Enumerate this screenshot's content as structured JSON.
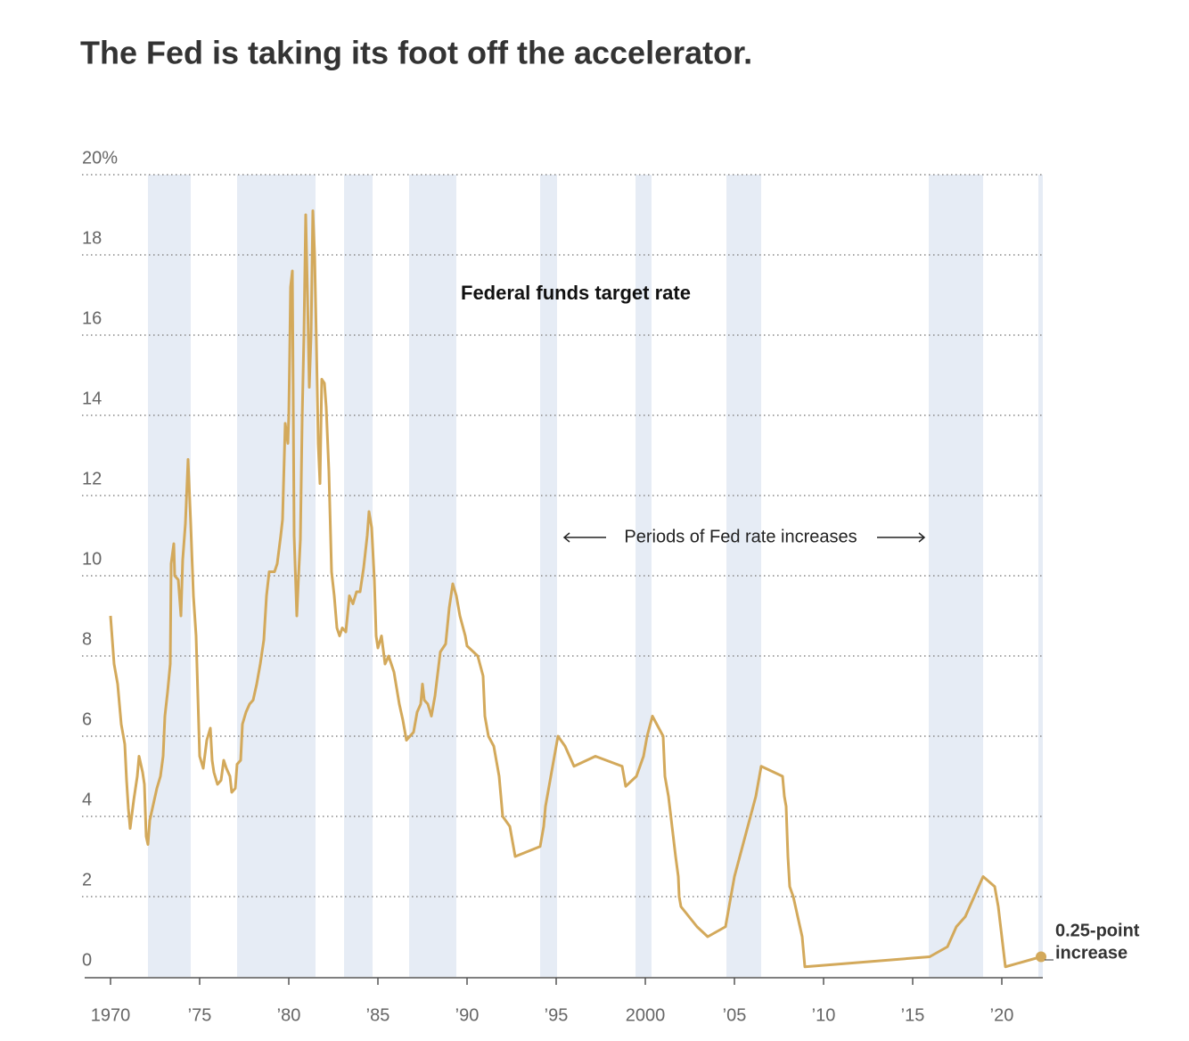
{
  "chart_data": {
    "type": "line",
    "title": "The Fed is taking its foot off the accelerator.",
    "xlim": [
      1968.55,
      2022.3
    ],
    "ylim": [
      0,
      20
    ],
    "xticks": [
      1970,
      {
        "value": 1975,
        "label": "’75"
      },
      {
        "value": 1980,
        "label": "’80"
      },
      {
        "value": 1985,
        "label": "’85"
      },
      {
        "value": 1990,
        "label": "’90"
      },
      {
        "value": 1995,
        "label": "’95"
      },
      2000,
      {
        "value": 2005,
        "label": "’05"
      },
      {
        "value": 2010,
        "label": "’10"
      },
      {
        "value": 2015,
        "label": "’15"
      },
      {
        "value": 2020,
        "label": "’20"
      }
    ],
    "yticks": [
      0,
      2,
      4,
      6,
      8,
      10,
      12,
      14,
      16,
      18,
      {
        "value": 20,
        "label": "20%"
      }
    ],
    "grid": true,
    "shade_color": "#e6ecf5",
    "shaded_periods": [
      [
        1972.1,
        1974.5
      ],
      [
        1977.1,
        1981.5
      ],
      [
        1983.1,
        1984.7
      ],
      [
        1986.75,
        1989.4
      ],
      [
        1994.1,
        1995.05
      ],
      [
        1999.45,
        2000.35
      ],
      [
        2004.55,
        2006.5
      ],
      [
        2015.9,
        2018.95
      ],
      [
        2022.05,
        2022.3
      ]
    ],
    "shade_annotation": "Periods of Fed rate increases",
    "end_annotation": [
      "0.25-point",
      "increase"
    ],
    "x": [
      1970.0,
      1970.2,
      1970.4,
      1970.6,
      1970.8,
      1970.9,
      1971.0,
      1971.1,
      1971.3,
      1971.5,
      1971.6,
      1971.8,
      1971.9,
      1972.0,
      1972.1,
      1972.2,
      1972.4,
      1972.6,
      1972.8,
      1972.95,
      1973.05,
      1973.2,
      1973.35,
      1973.4,
      1973.55,
      1973.6,
      1973.8,
      1973.95,
      1974.05,
      1974.2,
      1974.35,
      1974.5,
      1974.65,
      1974.8,
      1974.9,
      1975.0,
      1975.2,
      1975.4,
      1975.6,
      1975.7,
      1975.8,
      1976.0,
      1976.2,
      1976.35,
      1976.5,
      1976.7,
      1976.8,
      1977.0,
      1977.1,
      1977.3,
      1977.4,
      1977.6,
      1977.8,
      1978.0,
      1978.2,
      1978.4,
      1978.6,
      1978.75,
      1978.9,
      1979.2,
      1979.35,
      1979.55,
      1979.65,
      1979.8,
      1979.95,
      1980.0,
      1980.05,
      1980.1,
      1980.2,
      1980.3,
      1980.45,
      1980.55,
      1980.65,
      1980.75,
      1980.85,
      1980.95,
      1981.05,
      1981.15,
      1981.25,
      1981.35,
      1981.45,
      1981.55,
      1981.65,
      1981.75,
      1981.85,
      1982.0,
      1982.1,
      1982.25,
      1982.4,
      1982.55,
      1982.7,
      1982.85,
      1983.0,
      1983.2,
      1983.4,
      1983.6,
      1983.8,
      1984.0,
      1984.2,
      1984.4,
      1984.5,
      1984.65,
      1984.8,
      1984.9,
      1985.0,
      1985.2,
      1985.4,
      1985.6,
      1985.9,
      1986.2,
      1986.4,
      1986.6,
      1987.0,
      1987.2,
      1987.4,
      1987.5,
      1987.6,
      1987.8,
      1988.0,
      1988.2,
      1988.5,
      1988.8,
      1989.0,
      1989.2,
      1989.4,
      1989.6,
      1989.9,
      1990.0,
      1990.6,
      1990.9,
      1991.0,
      1991.2,
      1991.5,
      1991.8,
      1992.0,
      1992.4,
      1992.6,
      1992.7,
      1994.1,
      1994.3,
      1994.4,
      1994.6,
      1994.9,
      1995.1,
      1995.5,
      1996.0,
      1997.2,
      1998.7,
      1998.9,
      1999.5,
      1999.7,
      1999.9,
      2000.1,
      2000.4,
      2001.0,
      2001.1,
      2001.3,
      2001.5,
      2001.7,
      2001.85,
      2001.9,
      2002.0,
      2002.9,
      2003.5,
      2004.5,
      2004.6,
      2004.8,
      2005.0,
      2005.3,
      2005.6,
      2005.9,
      2006.2,
      2006.4,
      2006.5,
      2007.7,
      2007.8,
      2007.9,
      2008.0,
      2008.1,
      2008.3,
      2008.8,
      2008.95,
      2015.95,
      2016.95,
      2017.2,
      2017.45,
      2017.95,
      2018.2,
      2018.45,
      2018.7,
      2018.95,
      2019.6,
      2019.7,
      2019.8,
      2020.2,
      2022.2
    ],
    "series": [
      {
        "name": "Federal funds target rate",
        "color": "#d3a95b",
        "values": [
          9.0,
          7.8,
          7.3,
          6.3,
          5.8,
          4.9,
          4.2,
          3.7,
          4.4,
          5.0,
          5.5,
          5.1,
          4.8,
          3.5,
          3.3,
          3.9,
          4.3,
          4.7,
          5.0,
          5.5,
          6.5,
          7.1,
          7.8,
          10.3,
          10.8,
          10.0,
          9.9,
          9.0,
          10.4,
          11.3,
          12.9,
          11.3,
          9.5,
          8.5,
          7.0,
          5.5,
          5.2,
          5.9,
          6.2,
          5.4,
          5.1,
          4.8,
          4.9,
          5.4,
          5.2,
          5.0,
          4.6,
          4.7,
          5.3,
          5.4,
          6.3,
          6.6,
          6.8,
          6.9,
          7.3,
          7.8,
          8.4,
          9.5,
          10.1,
          10.1,
          10.3,
          11.0,
          11.4,
          13.8,
          13.3,
          14.0,
          15.5,
          17.2,
          17.6,
          11.0,
          9.0,
          10.0,
          10.9,
          13.9,
          16.0,
          19.0,
          17.0,
          14.7,
          16.0,
          19.1,
          18.0,
          15.8,
          13.3,
          12.3,
          14.9,
          14.8,
          14.2,
          12.6,
          10.1,
          9.5,
          8.7,
          8.5,
          8.7,
          8.6,
          9.5,
          9.3,
          9.6,
          9.6,
          10.2,
          11.0,
          11.6,
          11.2,
          9.9,
          8.5,
          8.2,
          8.5,
          7.8,
          8.0,
          7.6,
          6.8,
          6.4,
          5.9,
          6.1,
          6.6,
          6.8,
          7.3,
          6.9,
          6.8,
          6.5,
          7.0,
          8.1,
          8.3,
          9.2,
          9.8,
          9.5,
          9.0,
          8.5,
          8.25,
          8.0,
          7.5,
          6.5,
          6.0,
          5.75,
          5.0,
          4.0,
          3.75,
          3.25,
          3.0,
          3.25,
          3.75,
          4.25,
          4.75,
          5.5,
          6.0,
          5.75,
          5.25,
          5.5,
          5.25,
          4.75,
          5.0,
          5.25,
          5.5,
          6.0,
          6.5,
          6.0,
          5.0,
          4.5,
          3.75,
          3.0,
          2.5,
          2.0,
          1.75,
          1.25,
          1.0,
          1.25,
          1.5,
          2.0,
          2.5,
          3.0,
          3.5,
          4.0,
          4.5,
          5.0,
          5.25,
          5.0,
          4.5,
          4.25,
          3.0,
          2.25,
          2.0,
          1.0,
          0.25,
          0.5,
          0.75,
          1.0,
          1.25,
          1.5,
          1.75,
          2.0,
          2.25,
          2.5,
          2.25,
          2.0,
          1.75,
          0.25,
          0.5
        ]
      }
    ]
  }
}
